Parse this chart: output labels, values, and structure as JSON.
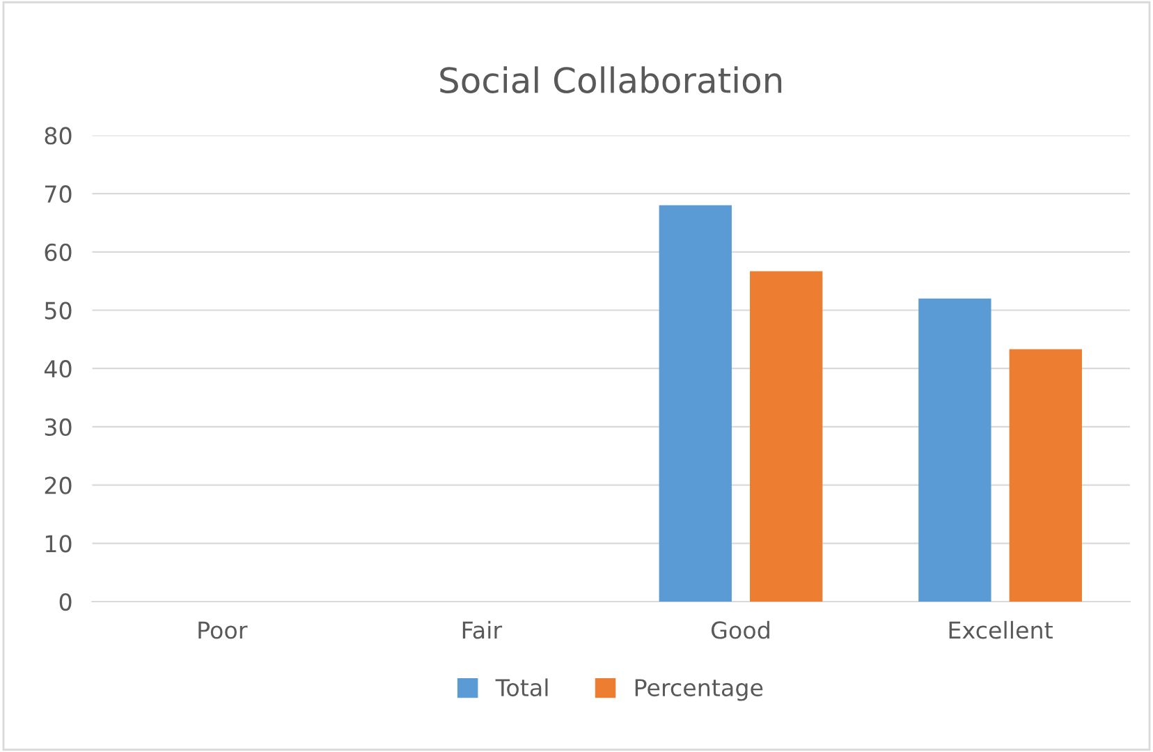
{
  "chart_data": {
    "type": "bar",
    "title": "Social Collaboration",
    "categories": [
      "Poor",
      "Fair",
      "Good",
      "Excellent"
    ],
    "series": [
      {
        "name": "Total",
        "color": "#5b9bd5",
        "values": [
          0,
          0,
          68,
          52
        ]
      },
      {
        "name": "Percentage",
        "color": "#ed7d31",
        "values": [
          0,
          0,
          56.7,
          43.3
        ]
      }
    ],
    "ylim": [
      0,
      80
    ],
    "yticks": [
      0,
      10,
      20,
      30,
      40,
      50,
      60,
      70,
      80
    ],
    "grid": "y",
    "legend": "bottom"
  }
}
